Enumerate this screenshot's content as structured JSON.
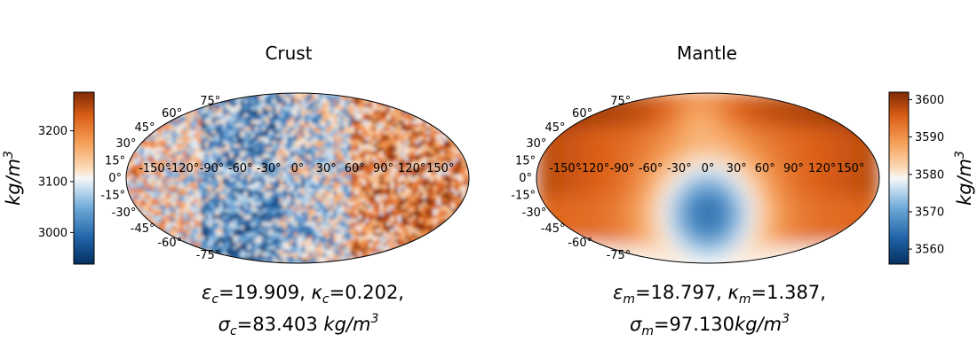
{
  "chart_data": [
    {
      "type": "heatmap",
      "projection": "mollweide",
      "title": "Crust",
      "longitude_labels": [
        "-150°",
        "-120°",
        "-90°",
        "-60°",
        "-30°",
        "0°",
        "30°",
        "60°",
        "90°",
        "120°",
        "150°"
      ],
      "latitude_labels": [
        "75°",
        "60°",
        "45°",
        "30°",
        "15°",
        "0°",
        "-15°",
        "-30°",
        "-45°",
        "-60°",
        "-75°"
      ],
      "colorbar": {
        "side": "left",
        "label": "kg/m",
        "label_exp": "3",
        "range": [
          2938,
          3276
        ],
        "ticks": [
          3000,
          3100,
          3200
        ],
        "colormap": "diverging blue-white-orange"
      },
      "caption": {
        "line1": {
          "eps_sub": "c",
          "eps_val": "=19.909, ",
          "kappa_sub": "c",
          "kappa_val": "=0.202,"
        },
        "line2": {
          "sigma_sub": "c",
          "sigma_val": "=83.403 ",
          "unit": "kg/m",
          "unit_exp": "3"
        }
      }
    },
    {
      "type": "heatmap",
      "projection": "mollweide",
      "title": "Mantle",
      "longitude_labels": [
        "-150°",
        "-120°",
        "-90°",
        "-60°",
        "-30°",
        "0°",
        "30°",
        "60°",
        "90°",
        "120°",
        "150°"
      ],
      "latitude_labels": [
        "75°",
        "60°",
        "45°",
        "30°",
        "15°",
        "0°",
        "-15°",
        "-30°",
        "-45°",
        "-60°",
        "-75°"
      ],
      "colorbar": {
        "side": "right",
        "label": "kg/m",
        "label_exp": "3",
        "range": [
          3556,
          3602
        ],
        "ticks": [
          3560,
          3570,
          3580,
          3590,
          3600
        ],
        "colormap": "diverging blue-white-orange"
      },
      "caption": {
        "line1": {
          "eps_sub": "m",
          "eps_val": "=18.797, ",
          "kappa_sub": "m",
          "kappa_val": "=1.387,"
        },
        "line2": {
          "sigma_sub": "m",
          "sigma_val": "=97.130",
          "unit": "kg/m",
          "unit_exp": "3"
        }
      }
    }
  ]
}
